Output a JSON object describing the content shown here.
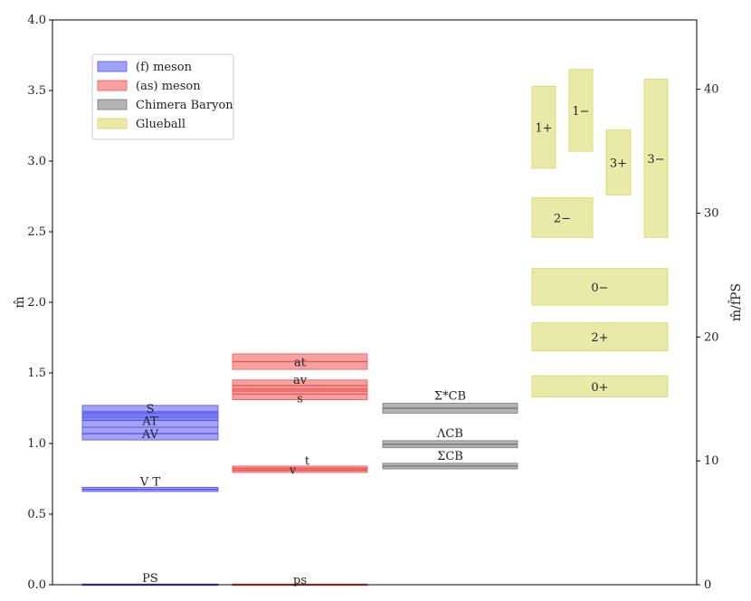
{
  "chart_data": {
    "type": "bar",
    "title": "",
    "ylabel": "m̂",
    "ylabel_right": "m̂/f̂PS",
    "ylim": [
      0,
      4.0
    ],
    "ylim_right": [
      0,
      45.6
    ],
    "yticks": [
      "0.0",
      "0.5",
      "1.0",
      "1.5",
      "2.0",
      "2.5",
      "3.0",
      "3.5",
      "4.0"
    ],
    "yticks_right": [
      "0",
      "10",
      "20",
      "30",
      "40"
    ],
    "grid": false,
    "legend_position": "top-left",
    "series": [
      {
        "name": "(f) meson",
        "color": "#5555ee",
        "column": 0,
        "states": [
          {
            "label": "PS",
            "value": 0.0,
            "error": 0.005
          },
          {
            "label": "V T",
            "value": 0.675,
            "error": 0.015
          },
          {
            "label": "AV",
            "value": 1.07,
            "error": 0.045
          },
          {
            "label": "AT",
            "value": 1.165,
            "error": 0.05
          },
          {
            "label": "S",
            "value": 1.225,
            "error": 0.045
          }
        ]
      },
      {
        "name": "(as) meson",
        "color": "#ee5555",
        "column": 1,
        "states": [
          {
            "label": "ps",
            "value": 0.0,
            "error": 0.005
          },
          {
            "label": "v",
            "value": 0.81,
            "error": 0.015
          },
          {
            "label": "t",
            "value": 0.825,
            "error": 0.015
          },
          {
            "label": "s",
            "value": 1.35,
            "error": 0.04
          },
          {
            "label": "av",
            "value": 1.41,
            "error": 0.04
          },
          {
            "label": "at",
            "value": 1.58,
            "error": 0.055
          }
        ]
      },
      {
        "name": "Chimera Baryon",
        "color": "#777777",
        "column": 2,
        "states": [
          {
            "label": "ΣCB",
            "value": 0.84,
            "error": 0.02
          },
          {
            "label": "ΛCB",
            "value": 0.995,
            "error": 0.025
          },
          {
            "label": "Σ*CB",
            "value": 1.25,
            "error": 0.035
          }
        ]
      },
      {
        "name": "Glueball",
        "color": "#d8d860",
        "column": 3,
        "states": [
          {
            "label": "0+",
            "value": 1.405,
            "error": 0.075
          },
          {
            "label": "2+",
            "value": 1.755,
            "error": 0.1
          },
          {
            "label": "0−",
            "value": 2.11,
            "error": 0.13
          },
          {
            "label": "2−",
            "value": 2.6,
            "error": 0.14
          },
          {
            "label": "1+",
            "value": 3.24,
            "error": 0.29
          },
          {
            "label": "1−",
            "value": 3.36,
            "error": 0.29
          },
          {
            "label": "3+",
            "value": 2.99,
            "error": 0.23
          },
          {
            "label": "3−",
            "value": 3.02,
            "error": 0.56
          }
        ]
      }
    ]
  }
}
